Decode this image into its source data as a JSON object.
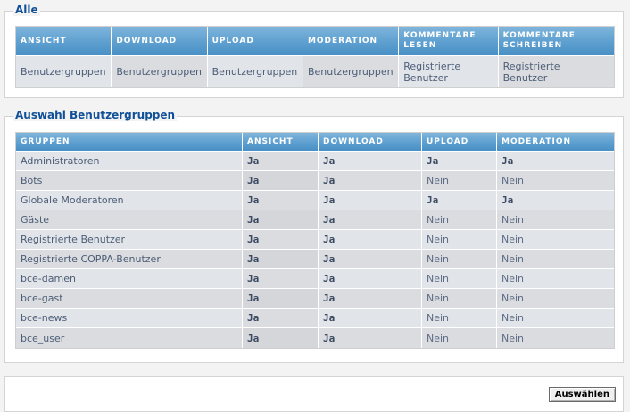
{
  "all_panel": {
    "legend": "Alle",
    "columns": [
      "ANSICHT",
      "DOWNLOAD",
      "UPLOAD",
      "MODERATION",
      "KOMMENTARE LESEN",
      "KOMMENTARE SCHREIBEN"
    ],
    "column_lines": [
      [
        "ANSICHT"
      ],
      [
        "DOWNLOAD"
      ],
      [
        "UPLOAD"
      ],
      [
        "MODERATION"
      ],
      [
        "KOMMENTARE",
        "LESEN"
      ],
      [
        "KOMMENTARE",
        "SCHREIBEN"
      ]
    ],
    "values": [
      [
        "Benutzergruppen"
      ],
      [
        "Benutzergruppen"
      ],
      [
        "Benutzergruppen"
      ],
      [
        "Benutzergruppen"
      ],
      [
        "Registrierte",
        "Benutzer"
      ],
      [
        "Registrierte",
        "Benutzer"
      ]
    ]
  },
  "groups_panel": {
    "legend": "Auswahl Benutzergruppen",
    "columns": [
      "GRUPPEN",
      "ANSICHT",
      "DOWNLOAD",
      "UPLOAD",
      "MODERATION"
    ],
    "rows": [
      {
        "group": "Administratoren",
        "ansicht": "Ja",
        "download": "Ja",
        "upload": "Ja",
        "moderation": "Ja"
      },
      {
        "group": "Bots",
        "ansicht": "Ja",
        "download": "Ja",
        "upload": "Nein",
        "moderation": "Nein"
      },
      {
        "group": "Globale Moderatoren",
        "ansicht": "Ja",
        "download": "Ja",
        "upload": "Ja",
        "moderation": "Ja"
      },
      {
        "group": "Gäste",
        "ansicht": "Ja",
        "download": "Ja",
        "upload": "Nein",
        "moderation": "Nein"
      },
      {
        "group": "Registrierte Benutzer",
        "ansicht": "Ja",
        "download": "Ja",
        "upload": "Nein",
        "moderation": "Nein"
      },
      {
        "group": "Registrierte COPPA-Benutzer",
        "ansicht": "Ja",
        "download": "Ja",
        "upload": "Nein",
        "moderation": "Nein"
      },
      {
        "group": "bce-damen",
        "ansicht": "Ja",
        "download": "Ja",
        "upload": "Nein",
        "moderation": "Nein"
      },
      {
        "group": "bce-gast",
        "ansicht": "Ja",
        "download": "Ja",
        "upload": "Nein",
        "moderation": "Nein"
      },
      {
        "group": "bce-news",
        "ansicht": "Ja",
        "download": "Ja",
        "upload": "Nein",
        "moderation": "Nein"
      },
      {
        "group": "bce_user",
        "ansicht": "Ja",
        "download": "Ja",
        "upload": "Nein",
        "moderation": "Nein"
      }
    ]
  },
  "actions": {
    "select_button": "Auswählen"
  }
}
